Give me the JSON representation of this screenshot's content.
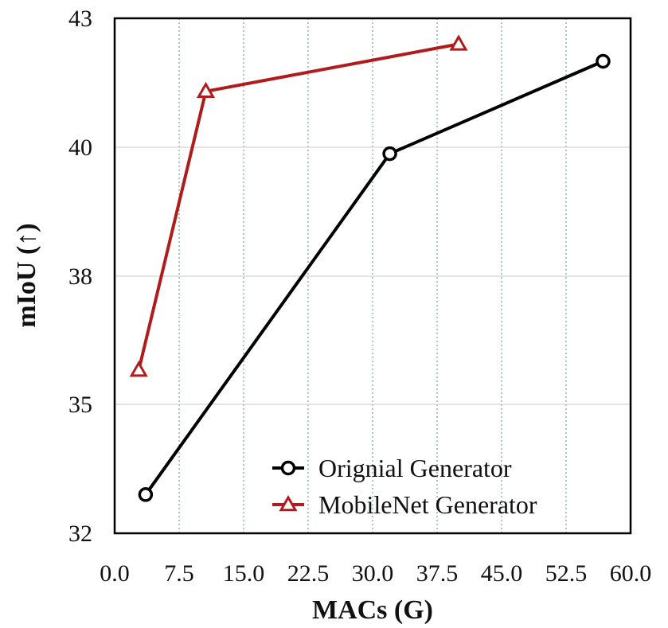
{
  "chart_data": {
    "type": "line",
    "title": "",
    "xlabel": "MACs (G)",
    "ylabel": "mIoU (↑)",
    "xlim": [
      0,
      60
    ],
    "ylim": [
      32,
      43
    ],
    "x_ticks": [
      0,
      7.5,
      15,
      22.5,
      30,
      37.5,
      45,
      52.5,
      60
    ],
    "x_tick_labels": [
      "0.0",
      "7.5",
      "15.0",
      "22.5",
      "30.0",
      "37.5",
      "45.0",
      "52.5",
      "60.0"
    ],
    "y_ticks": [
      32,
      35,
      38,
      40,
      43
    ],
    "y_tick_labels": [
      "32",
      "35",
      "38",
      "40",
      "43"
    ],
    "grid": true,
    "legend_position": "bottom-right",
    "series": [
      {
        "name": "Orignial Generator",
        "marker": "circle",
        "color": "#000000",
        "points": [
          [
            3.6,
            32.9
          ],
          [
            32.0,
            39.9
          ],
          [
            56.8,
            42.0
          ]
        ]
      },
      {
        "name": "MobileNet Generator",
        "marker": "triangle",
        "color": "#b01c1c",
        "points": [
          [
            2.8,
            35.8
          ],
          [
            10.6,
            41.3
          ],
          [
            40.0,
            42.4
          ]
        ]
      }
    ]
  }
}
